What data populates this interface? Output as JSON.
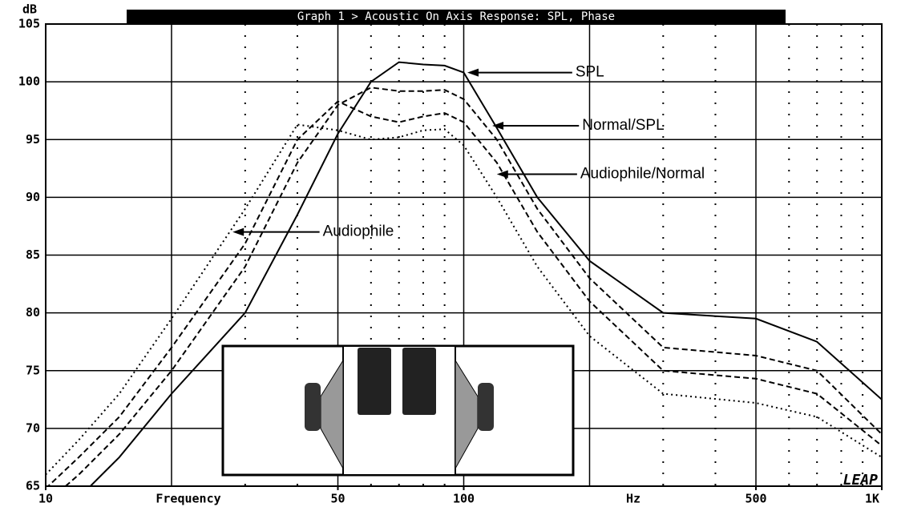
{
  "chart_data": {
    "type": "line",
    "title": "Graph 1 > Acoustic On Axis Response: SPL, Phase",
    "y_label": "dB",
    "x_label": "Frequency",
    "x_unit": "Hz",
    "logo": "LEAP",
    "x_log": true,
    "grid": true,
    "x": [
      10,
      12,
      15,
      20,
      30,
      40,
      50,
      60,
      70,
      80,
      90,
      100,
      120,
      150,
      200,
      300,
      500,
      700,
      1000
    ],
    "series": [
      {
        "name": "SPL",
        "color": "#000000",
        "dash": "solid",
        "values": [
          61,
          64,
          67.5,
          73,
          80,
          88.5,
          95.5,
          100,
          101.7,
          101.5,
          101.4,
          100.8,
          96,
          90,
          84.5,
          80,
          79.5,
          77.5,
          72.5
        ]
      },
      {
        "name": "Normal/SPL",
        "color": "#000000",
        "dash": "dashed",
        "values": [
          63.5,
          66,
          69.5,
          75,
          84,
          93,
          98,
          99.5,
          99.2,
          99.2,
          99.3,
          98.5,
          95,
          89,
          83,
          77,
          76.3,
          75,
          69.5
        ]
      },
      {
        "name": "Audiophile/Normal",
        "color": "#000000",
        "dash": "dashed",
        "values": [
          64.8,
          67.5,
          71,
          77,
          86,
          95,
          98.3,
          97,
          96.5,
          97,
          97.3,
          96.5,
          93,
          87,
          81,
          75,
          74.3,
          73,
          68.5
        ]
      },
      {
        "name": "Audiophile",
        "color": "#000000",
        "dash": "dotted",
        "values": [
          66,
          69,
          73,
          79.5,
          89,
          96.3,
          95.8,
          95,
          95.2,
          95.8,
          95.9,
          94.5,
          90,
          84,
          78,
          73,
          72.2,
          71,
          67.5
        ]
      }
    ],
    "annotations": [
      {
        "text": "SPL",
        "x": 185,
        "y": 100.8,
        "arrow_x": 102
      },
      {
        "text": "Normal/SPL",
        "x": 192,
        "y": 96.2,
        "arrow_x": 117
      },
      {
        "text": "Audiophile/Normal",
        "x": 190,
        "y": 92,
        "arrow_x": 120
      },
      {
        "text": "Audiophile",
        "x": 46,
        "y": 87,
        "arrow_x": 28
      }
    ],
    "xlim": [
      10,
      1000
    ],
    "ylim": [
      65,
      105
    ],
    "xticks": [
      10,
      50,
      100,
      500,
      {
        "value": 1000,
        "label": "1K"
      }
    ],
    "yticks": [
      65,
      70,
      75,
      80,
      85,
      90,
      95,
      100,
      105
    ],
    "xgrid_major": [
      20,
      50,
      100,
      200,
      500
    ],
    "xgrid_minor": [
      30,
      40,
      60,
      70,
      80,
      90,
      300,
      400,
      600,
      700,
      800,
      900
    ]
  }
}
